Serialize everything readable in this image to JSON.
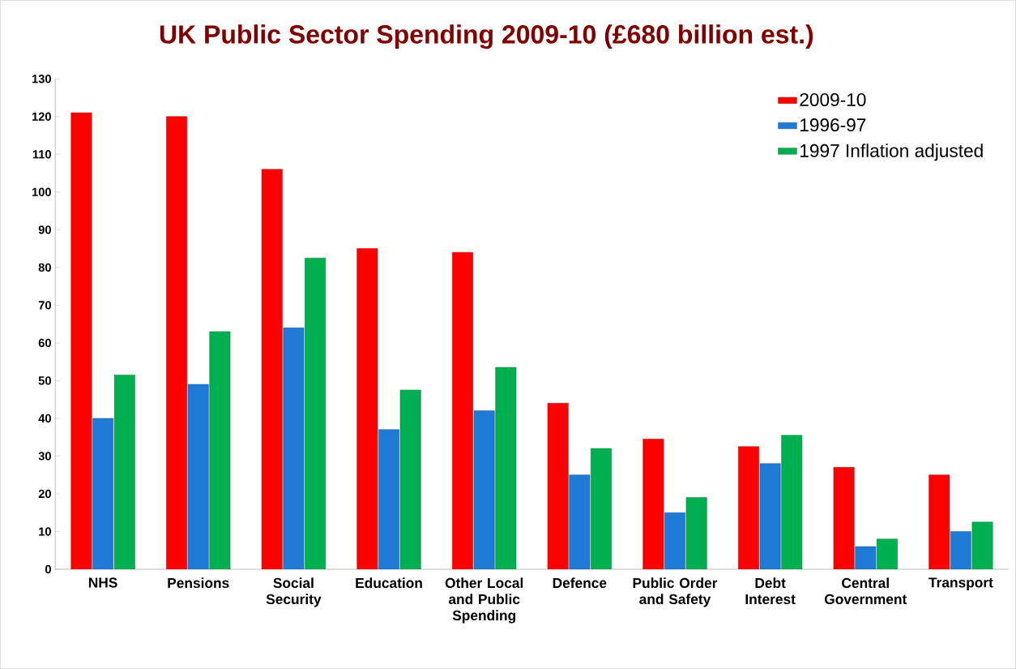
{
  "chart_data": {
    "type": "bar",
    "title": "UK Public Sector Spending  2009-10  (£680 billion est.)",
    "categories": [
      "NHS",
      "Pensions",
      "Social Security",
      "Education",
      "Other Local and Public Spending",
      "Defence",
      "Public Order and Safety",
      "Debt Interest",
      "Central Government",
      "Transport"
    ],
    "series": [
      {
        "name": "2009-10",
        "color": "#ff0000",
        "values": [
          121,
          120,
          106,
          85,
          84,
          44,
          34.5,
          32.5,
          27,
          25
        ]
      },
      {
        "name": "1996-97",
        "color": "#1f7ad6",
        "values": [
          40,
          49,
          64,
          37,
          42,
          25,
          15,
          28,
          6,
          10
        ]
      },
      {
        "name": "1997 Inflation adjusted",
        "color": "#00b050",
        "values": [
          51.5,
          63,
          82.5,
          47.5,
          53.5,
          32,
          19,
          35.5,
          8,
          12.5
        ]
      }
    ],
    "ylim": [
      0,
      130
    ],
    "yticks": [
      0,
      10,
      20,
      30,
      40,
      50,
      60,
      70,
      80,
      90,
      100,
      110,
      120,
      130
    ],
    "legend": "top right"
  }
}
